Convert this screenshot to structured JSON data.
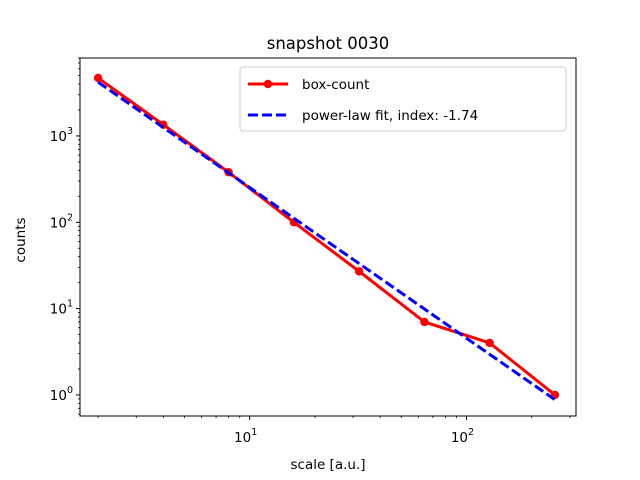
{
  "chart_data": {
    "type": "line",
    "title": "snapshot 0030",
    "xlabel": "scale [a.u.]",
    "ylabel": "counts",
    "xscale": "log",
    "yscale": "log",
    "xlim": [
      1.65,
      320
    ],
    "ylim": [
      0.57,
      8000
    ],
    "x_ticks": [
      {
        "value": 10,
        "base": "10",
        "exp": "1"
      },
      {
        "value": 100,
        "base": "10",
        "exp": "2"
      }
    ],
    "y_ticks": [
      {
        "value": 1,
        "base": "10",
        "exp": "0"
      },
      {
        "value": 10,
        "base": "10",
        "exp": "1"
      },
      {
        "value": 100,
        "base": "10",
        "exp": "2"
      },
      {
        "value": 1000,
        "base": "10",
        "exp": "3"
      }
    ],
    "grid": false,
    "legend_position": "top-right",
    "series": [
      {
        "name": "box-count",
        "color": "#ff0000",
        "style": "solid-with-markers",
        "x": [
          2,
          4,
          8,
          16,
          32,
          64,
          128,
          256
        ],
        "y": [
          4700,
          1350,
          380,
          100,
          27,
          7,
          4,
          1
        ]
      },
      {
        "name": "power-law fit, index: -1.74",
        "color": "#0000ff",
        "style": "dashed",
        "x": [
          2,
          256
        ],
        "y": [
          4200,
          0.88
        ]
      }
    ]
  }
}
